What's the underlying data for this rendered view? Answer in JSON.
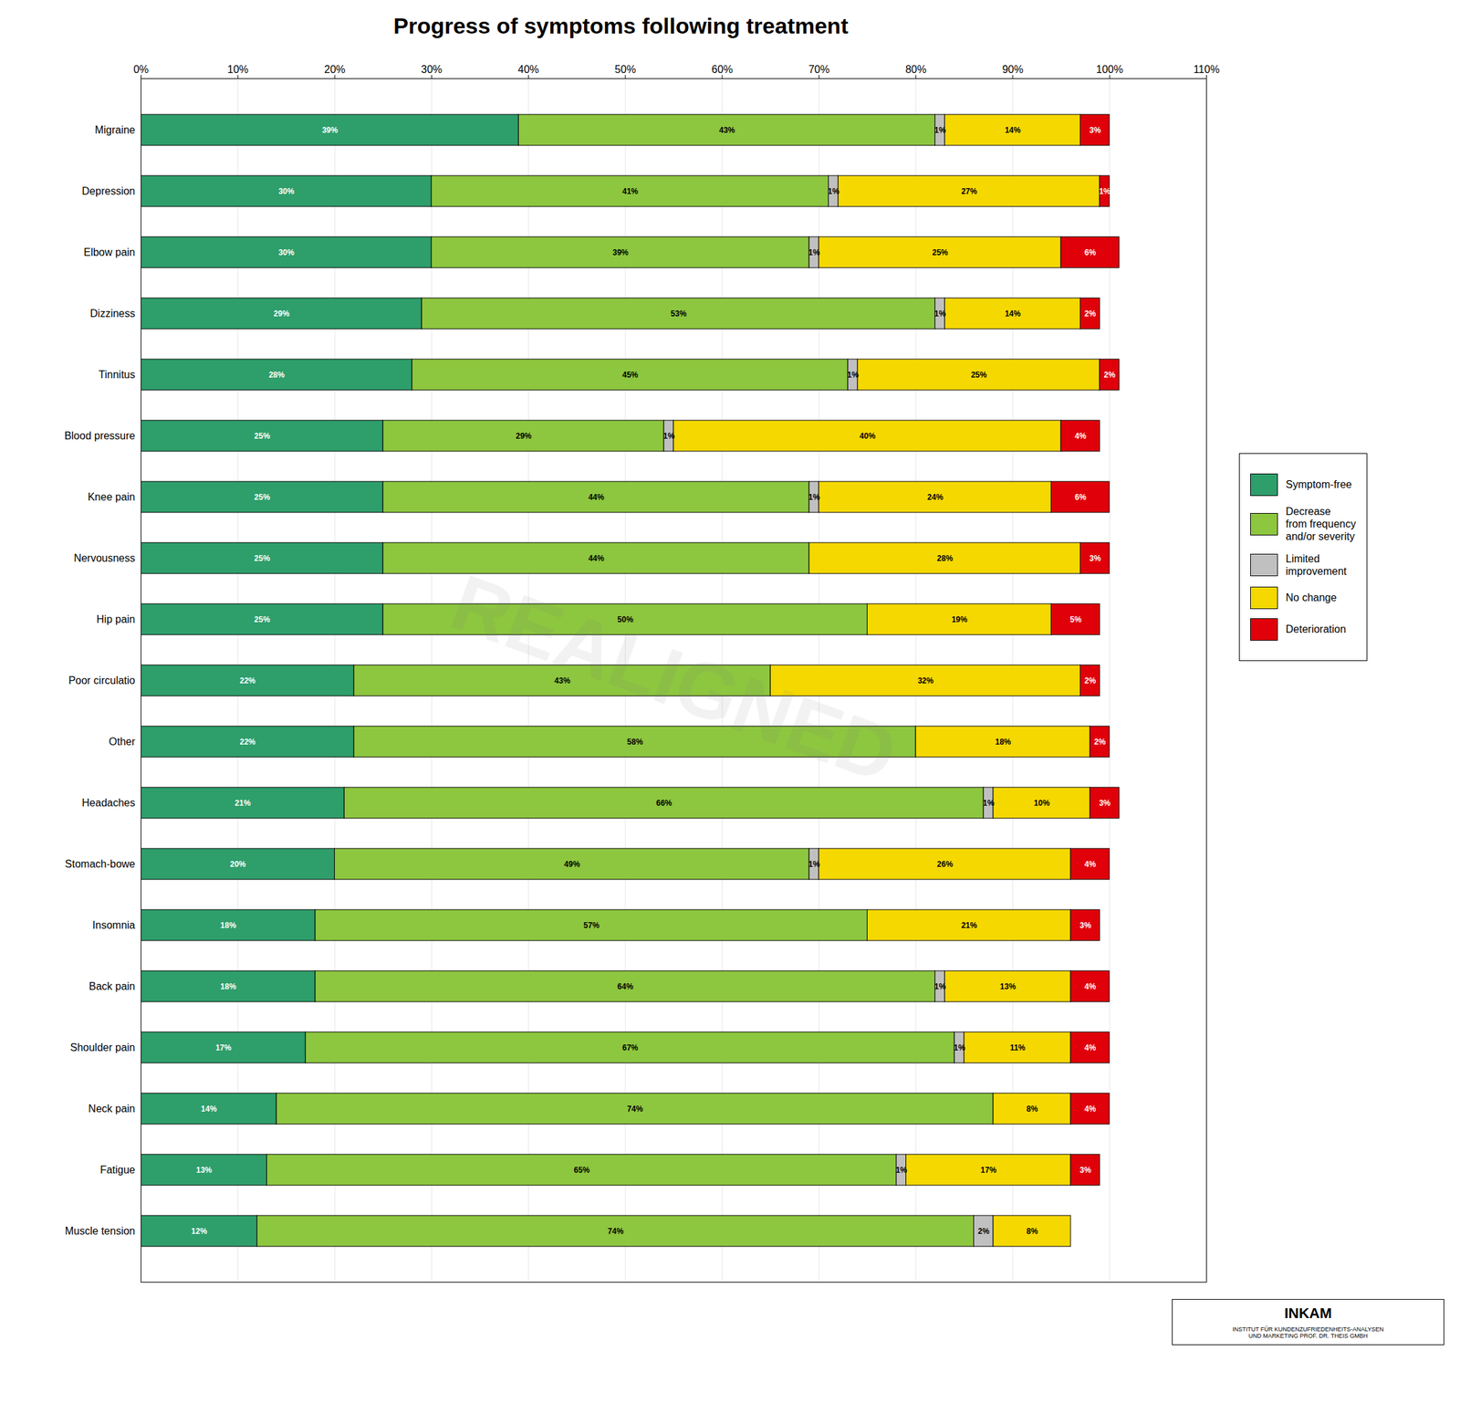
{
  "chart_data": {
    "type": "bar",
    "title": "Progress of symptoms following treatment",
    "orientation": "horizontal",
    "stacked": true,
    "grid": true,
    "legend": "right",
    "data_labels": true,
    "categories": [
      "Migraine",
      "Depression",
      "Elbow pain",
      "Dizziness",
      "Tinnitus",
      "Blood pressure",
      "Knee pain",
      "Nervousness",
      "Hip pain",
      "Poor circulatio",
      "Other",
      "Headaches",
      "Stomach-bowe",
      "Insomnia",
      "Back pain",
      "Shoulder pain",
      "Neck pain",
      "Fatigue",
      "Muscle tension"
    ],
    "series": [
      {
        "name": "Symptom-free",
        "color": "#2E9E6B",
        "values": [
          39,
          30,
          30,
          29,
          28,
          25,
          25,
          25,
          25,
          22,
          22,
          21,
          20,
          18,
          18,
          17,
          14,
          13,
          12
        ],
        "value_labels": [
          "39%",
          "30%",
          "30%",
          "29%",
          "28%",
          "25%",
          "25%",
          "25%",
          "25%",
          "22%",
          "22%",
          "21%",
          "20%",
          "18%",
          "18%",
          "17%",
          "14%",
          "13%",
          "12%"
        ]
      },
      {
        "name": "Decrease\nfrom frequency\nand/or severity",
        "color": "#8DC63F",
        "values": [
          43,
          41,
          39,
          53,
          45,
          29,
          44,
          44,
          50,
          43,
          58,
          66,
          49,
          57,
          64,
          67,
          74,
          65,
          74
        ],
        "value_labels": [
          "43%",
          "41%",
          "39%",
          "53%",
          "45%",
          "29%",
          "44%",
          "44%",
          "50%",
          "43%",
          "58%",
          "66%",
          "49%",
          "57%",
          "64%",
          "67%",
          "74%",
          "65%",
          "74%"
        ]
      },
      {
        "name": "Limited\nimprovement",
        "color": "#C0C0C0",
        "values": [
          1,
          1,
          1,
          1,
          1,
          1,
          1,
          0,
          0,
          0,
          0,
          1,
          1,
          0,
          1,
          1,
          0,
          1,
          2
        ],
        "value_labels": [
          "1%",
          "1%",
          "1%",
          "1%",
          "1%",
          "1%",
          "1%",
          null,
          null,
          null,
          null,
          "1%",
          "1%",
          null,
          "1%",
          "1%",
          null,
          "1%",
          "2%"
        ]
      },
      {
        "name": "No change",
        "color": "#F5D800",
        "values": [
          14,
          27,
          25,
          14,
          25,
          40,
          24,
          28,
          19,
          32,
          18,
          10,
          26,
          21,
          13,
          11,
          8,
          17,
          8
        ],
        "value_labels": [
          "14%",
          "27%",
          "25%",
          "14%",
          "25%",
          "40%",
          "24%",
          "28%",
          "19%",
          "32%",
          "18%",
          "10%",
          "26%",
          "21%",
          "13%",
          "11%",
          "8%",
          "17%",
          "8%"
        ]
      },
      {
        "name": "Deterioration",
        "color": "#E0000A",
        "values": [
          3,
          1,
          6,
          2,
          2,
          4,
          6,
          3,
          5,
          2,
          2,
          3,
          4,
          3,
          4,
          4,
          4,
          3,
          0
        ],
        "value_labels": [
          "3%",
          "1%",
          "6%",
          "2%",
          "2%",
          "4%",
          "6%",
          "3%",
          "5%",
          "2%",
          "2%",
          "3%",
          "4%",
          "3%",
          "4%",
          "4%",
          "4%",
          "3%",
          null
        ]
      }
    ],
    "xlim": [
      0,
      110
    ],
    "xticks": [
      {
        "value": 0,
        "label": "0%"
      },
      {
        "value": 10,
        "label": "10%"
      },
      {
        "value": 20,
        "label": "20%"
      },
      {
        "value": 30,
        "label": "30%"
      },
      {
        "value": 40,
        "label": "40%"
      },
      {
        "value": 50,
        "label": "50%"
      },
      {
        "value": 60,
        "label": "60%"
      },
      {
        "value": 70,
        "label": "70%"
      },
      {
        "value": 80,
        "label": "80%"
      },
      {
        "value": 90,
        "label": "90%"
      },
      {
        "value": 100,
        "label": "100%"
      },
      {
        "value": 110,
        "label": "110%"
      }
    ],
    "annotations": [
      "REALIGNED",
      "INKAM",
      "INSTITUT FÜR KUNDENZUFRIEDENHEITS-ANALYSEN\nUND MARKETING PROF. DR. THEIS GMBH"
    ]
  }
}
